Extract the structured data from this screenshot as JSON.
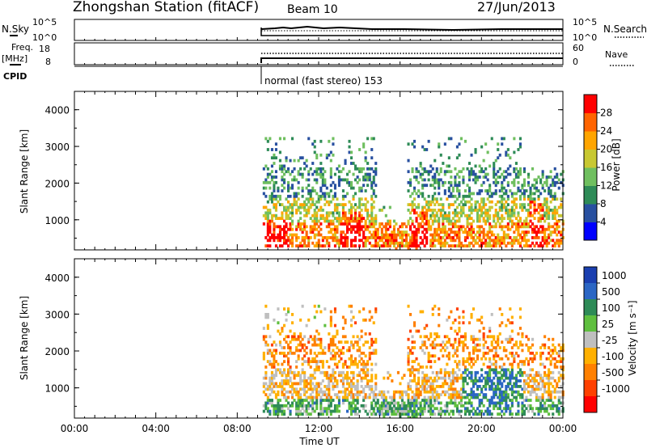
{
  "header": {
    "station": "Zhongshan Station (fitACF)",
    "beam": "Beam 10",
    "date": "27/Jun/2013"
  },
  "top_panels": {
    "nsky_label": "N.Sky",
    "nsky_ticks": [
      "10^5",
      "10^0"
    ],
    "nsearch_label": "N.Search",
    "nsearch_ticks": [
      "10^5",
      "10^0"
    ],
    "freq_label": "Freq.",
    "freq_unit": "[MHz]",
    "freq_ticks": [
      "18",
      "8"
    ],
    "nave_label": "Nave",
    "nave_ticks": [
      "60",
      "0"
    ],
    "cpid_label": "CPID",
    "cpid_text": "normal (fast stereo) 153"
  },
  "colors": {
    "power_scale": [
      "#0000ff",
      "#2850a0",
      "#2e8b57",
      "#6fbf5f",
      "#c8c832",
      "#ffa500",
      "#ff6400",
      "#ff0000"
    ],
    "velocity_scale": [
      "#1a3fb0",
      "#2b66c4",
      "#2e8b57",
      "#5fbf3f",
      "#bfbfbf",
      "#ffb000",
      "#ff8000",
      "#ff4000",
      "#ff0000"
    ]
  },
  "chart_data": [
    {
      "type": "heatmap",
      "title": "",
      "ylabel": "Slant Range [km]",
      "xlabel": "",
      "ylim": [
        180,
        4500
      ],
      "y_ticks": [
        "1000",
        "2000",
        "3000",
        "4000"
      ],
      "colorbar": {
        "label": "Power [dB]",
        "ticks": [
          "4",
          "8",
          "12",
          "16",
          "20",
          "24",
          "28"
        ]
      },
      "data_start_time": "09:15"
    },
    {
      "type": "heatmap",
      "title": "",
      "ylabel": "Slant Range [km]",
      "xlabel": "Time UT",
      "ylim": [
        180,
        4500
      ],
      "y_ticks": [
        "1000",
        "2000",
        "3000",
        "4000"
      ],
      "x_ticks": [
        "00:00",
        "04:00",
        "08:00",
        "12:00",
        "16:00",
        "20:00",
        "00:00"
      ],
      "colorbar": {
        "label": "Velocity [m s⁻¹]",
        "ticks": [
          "1000",
          "500",
          "100",
          "25",
          "-25",
          "-100",
          "-500",
          "-1000"
        ]
      }
    }
  ]
}
